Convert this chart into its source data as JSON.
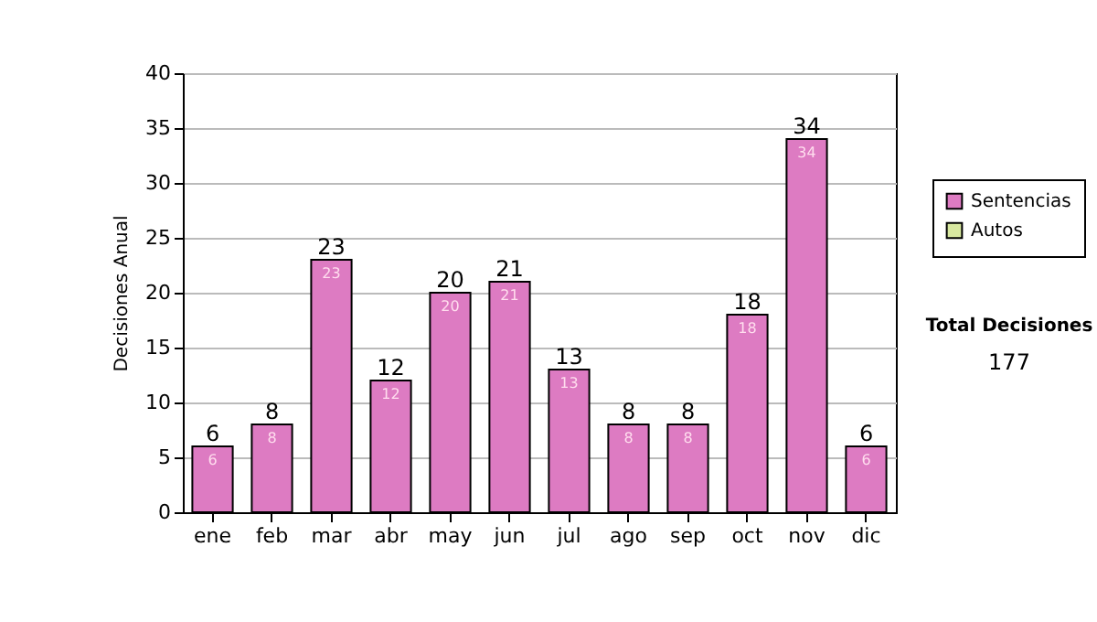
{
  "chart_data": {
    "type": "bar",
    "ylabel": "Decisiones Anual",
    "categories": [
      "ene",
      "feb",
      "mar",
      "abr",
      "may",
      "jun",
      "jul",
      "ago",
      "sep",
      "oct",
      "nov",
      "dic"
    ],
    "series": [
      {
        "name": "Sentencias",
        "color": "#dd7bc2",
        "values": [
          6,
          8,
          23,
          12,
          20,
          21,
          13,
          8,
          8,
          18,
          34,
          6
        ]
      },
      {
        "name": "Autos",
        "color": "#d8e8a0",
        "values": [
          null,
          null,
          null,
          null,
          null,
          null,
          null,
          null,
          null,
          null,
          null,
          null
        ]
      }
    ],
    "stacked": true,
    "data_labels": true,
    "totals": [
      "6",
      "8",
      "23",
      "12",
      "20",
      "21",
      "13",
      "8",
      "8",
      "18",
      "34",
      "6"
    ],
    "ylim": [
      0,
      40
    ],
    "yticks": [
      0,
      5,
      10,
      15,
      20,
      25,
      30,
      35,
      40
    ],
    "grid": "y",
    "legend": "right",
    "annotations": [
      "Total Decisiones",
      "177"
    ]
  }
}
